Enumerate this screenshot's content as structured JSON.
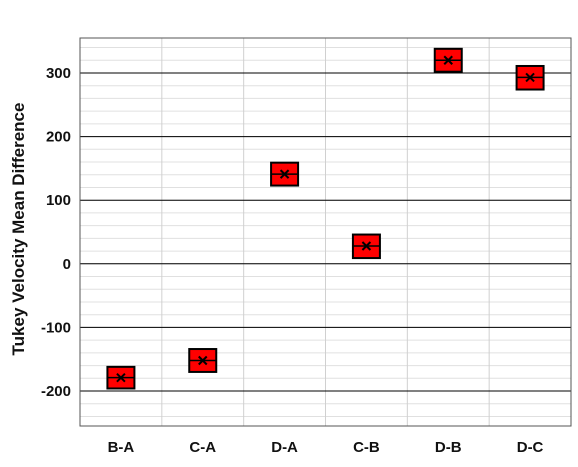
{
  "chart_data": {
    "type": "box",
    "title": "",
    "xlabel": "",
    "ylabel": "Tukey Velocity Mean Difference",
    "categories": [
      "B-A",
      "C-A",
      "D-A",
      "C-B",
      "D-B",
      "D-C"
    ],
    "series": [
      {
        "values": [
          {
            "category": "B-A",
            "mean": -179,
            "low": -196,
            "high": -162
          },
          {
            "category": "C-A",
            "mean": -152,
            "low": -170,
            "high": -134
          },
          {
            "category": "D-A",
            "mean": 141,
            "low": 123,
            "high": 159
          },
          {
            "category": "C-B",
            "mean": 28,
            "low": 9,
            "high": 46
          },
          {
            "category": "D-B",
            "mean": 320,
            "low": 302,
            "high": 338
          },
          {
            "category": "D-C",
            "mean": 293,
            "low": 274,
            "high": 311
          }
        ]
      }
    ],
    "ylim": [
      -255,
      355
    ],
    "yticks": [
      -200,
      -100,
      0,
      100,
      200,
      300
    ],
    "ytick_labels": [
      "-200",
      "-100",
      "0",
      "100",
      "200",
      "300"
    ],
    "minor_step": 20,
    "grid": true,
    "legend": "none",
    "colors": {
      "box_fill": "#ff0000",
      "box_stroke": "#000000",
      "major_grid": "#000000",
      "minor_grid": "#e0e0e0",
      "vertical_grid": "#d0d0d0",
      "axes": "#555555"
    }
  }
}
